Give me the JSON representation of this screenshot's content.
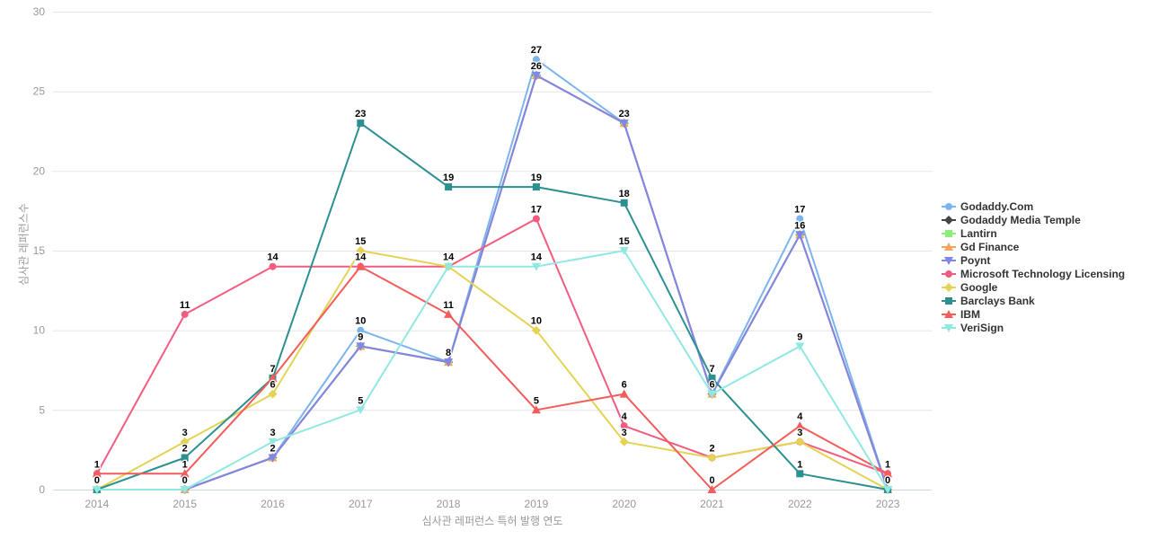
{
  "chart_data": {
    "type": "line",
    "title": "",
    "xlabel": "심사관 레퍼런스 특허 발행 연도",
    "ylabel": "심사관 레퍼런스수",
    "x_categories": [
      "2014",
      "2015",
      "2016",
      "2017",
      "2018",
      "2019",
      "2020",
      "2021",
      "2022",
      "2023"
    ],
    "y_ticks": [
      0,
      5,
      10,
      15,
      20,
      25,
      30
    ],
    "ylim": [
      0,
      30
    ],
    "grid": true,
    "legend_position": "right",
    "colors": {
      "grid": "#e6e6e6",
      "axis_line": "#ccd6eb",
      "tick_label": "#999999",
      "axis_title": "#999999",
      "legend_text": "#333333",
      "data_label": "#000000"
    },
    "series": [
      {
        "name": "Godaddy.Com",
        "color": "#7cb5ec",
        "marker": "circle",
        "values": [
          0,
          0,
          2,
          10,
          8,
          27,
          23,
          6,
          17,
          0
        ]
      },
      {
        "name": "Godaddy Media Temple",
        "color": "#434348",
        "marker": "diamond",
        "values": [
          0,
          0,
          2,
          9,
          8,
          26,
          23,
          6,
          16,
          0
        ]
      },
      {
        "name": "Lantirn",
        "color": "#90ed7d",
        "marker": "square",
        "values": [
          0,
          0,
          2,
          9,
          8,
          26,
          23,
          6,
          16,
          0
        ]
      },
      {
        "name": "Gd Finance",
        "color": "#f7a35c",
        "marker": "triangle",
        "values": [
          0,
          0,
          2,
          9,
          8,
          26,
          23,
          6,
          16,
          0
        ]
      },
      {
        "name": "Poynt",
        "color": "#8085e9",
        "marker": "triangle-down",
        "values": [
          0,
          0,
          2,
          9,
          8,
          26,
          23,
          6,
          16,
          0
        ]
      },
      {
        "name": "Microsoft Technology Licensing",
        "color": "#f15c80",
        "marker": "circle",
        "values": [
          1,
          11,
          14,
          14,
          14,
          17,
          4,
          2,
          3,
          1
        ]
      },
      {
        "name": "Google",
        "color": "#e4d354",
        "marker": "diamond",
        "values": [
          0,
          3,
          6,
          15,
          14,
          10,
          3,
          2,
          3,
          0
        ]
      },
      {
        "name": "Barclays Bank",
        "color": "#2b908f",
        "marker": "square",
        "values": [
          0,
          2,
          7,
          23,
          19,
          19,
          18,
          7,
          1,
          0
        ]
      },
      {
        "name": "IBM",
        "color": "#f45b5b",
        "marker": "triangle",
        "values": [
          1,
          1,
          7,
          14,
          11,
          5,
          6,
          0,
          4,
          1
        ]
      },
      {
        "name": "VeriSign",
        "color": "#91e8e1",
        "marker": "triangle-down",
        "values": [
          0,
          0,
          3,
          5,
          14,
          14,
          15,
          6,
          9,
          0
        ]
      }
    ]
  }
}
